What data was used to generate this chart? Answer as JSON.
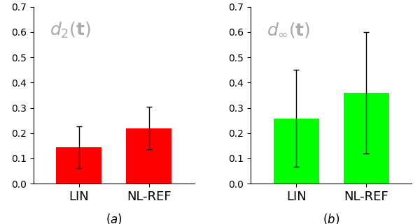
{
  "subplot_a": {
    "categories": [
      "LIN",
      "NL-REF"
    ],
    "means": [
      0.143,
      0.22
    ],
    "errors_upper": [
      0.083,
      0.085
    ],
    "errors_lower": [
      0.083,
      0.085
    ],
    "bar_color": "#ff0000",
    "ylim": [
      0,
      0.7
    ],
    "yticks": [
      0,
      0.1,
      0.2,
      0.3,
      0.4,
      0.5,
      0.6,
      0.7
    ],
    "label": "$d_2(\\mathbf{t})$",
    "sublabel": "$(a)$"
  },
  "subplot_b": {
    "categories": [
      "LIN",
      "NL-REF"
    ],
    "means": [
      0.258,
      0.36
    ],
    "errors_upper": [
      0.192,
      0.24
    ],
    "errors_lower": [
      0.192,
      0.24
    ],
    "bar_color": "#00ff00",
    "ylim": [
      0,
      0.7
    ],
    "yticks": [
      0,
      0.1,
      0.2,
      0.3,
      0.4,
      0.5,
      0.6,
      0.7
    ],
    "label": "$d_\\infty(\\mathbf{t})$",
    "sublabel": "$(b)$"
  },
  "error_color": "black",
  "error_capsize": 3,
  "bar_width": 0.65,
  "label_color": "#aaaaaa",
  "label_fontsize": 18,
  "xtick_fontsize": 13,
  "ytick_fontsize": 10
}
